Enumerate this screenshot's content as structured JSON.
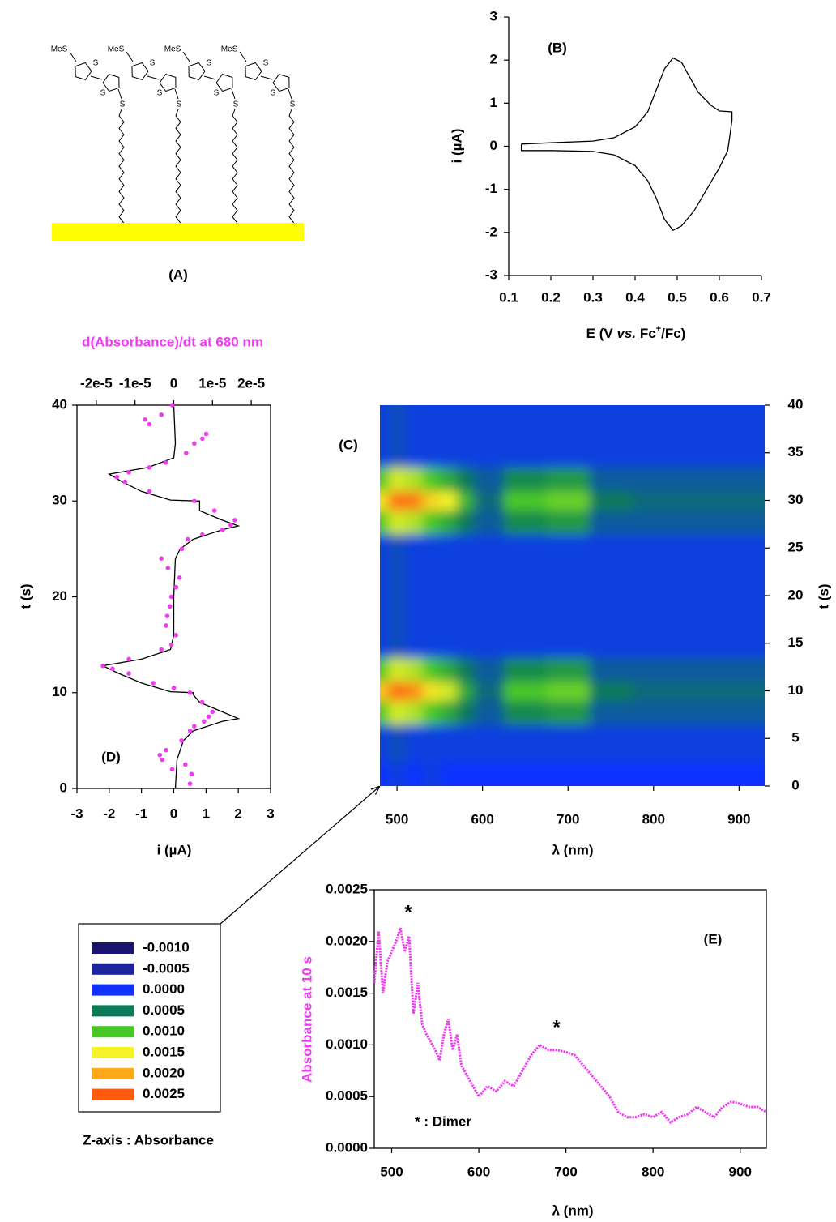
{
  "diagram": {
    "label": "(A)",
    "methylthio_label": "MeS",
    "sulfur_label": "S"
  },
  "chart_data": [
    {
      "type": "line",
      "panel_label": "(B)",
      "xlabel_parts": [
        "E (V ",
        "vs.",
        " Fc",
        "+",
        "/Fc)"
      ],
      "ylabel": "i (µA)",
      "xlim": [
        0.1,
        0.7
      ],
      "xticks": [
        0.1,
        0.2,
        0.3,
        0.4,
        0.5,
        0.6,
        0.7
      ],
      "ylim": [
        -3,
        3
      ],
      "yticks": [
        -3,
        -2,
        -1,
        0,
        1,
        2,
        3
      ],
      "color": "#000000",
      "x": [
        0.13,
        0.2,
        0.3,
        0.35,
        0.4,
        0.43,
        0.45,
        0.47,
        0.49,
        0.51,
        0.53,
        0.55,
        0.58,
        0.6,
        0.63,
        0.63,
        0.62,
        0.6,
        0.57,
        0.54,
        0.51,
        0.49,
        0.47,
        0.45,
        0.43,
        0.4,
        0.35,
        0.3,
        0.2,
        0.13,
        0.13
      ],
      "values": [
        0.05,
        0.08,
        0.12,
        0.2,
        0.45,
        0.8,
        1.3,
        1.8,
        2.05,
        1.95,
        1.6,
        1.25,
        0.95,
        0.82,
        0.8,
        0.6,
        -0.1,
        -0.5,
        -1.0,
        -1.5,
        -1.85,
        -1.95,
        -1.7,
        -1.2,
        -0.8,
        -0.45,
        -0.2,
        -0.12,
        -0.1,
        -0.1,
        0.05
      ]
    },
    {
      "type": "line",
      "orientation": "vertical",
      "panel_label": "(D)",
      "xlabel": "i (µA)",
      "x2label": "d(Absorbance)/dt at 680 nm",
      "ylabel": "t (s)",
      "xlim": [
        -3,
        3
      ],
      "xticks": [
        -3,
        -2,
        -1,
        0,
        1,
        2,
        3
      ],
      "x2lim": [
        -2.5e-05,
        2.5e-05
      ],
      "x2ticks": [
        {
          "value": -2e-05,
          "label": "-2e-5"
        },
        {
          "value": -1e-05,
          "label": "-1e-5"
        },
        0,
        {
          "value": 1e-05,
          "label": "1e-5"
        },
        {
          "value": 2e-05,
          "label": "2e-5"
        }
      ],
      "ylim": [
        0,
        40
      ],
      "yticks": [
        0,
        10,
        20,
        30,
        40
      ],
      "series": [
        {
          "color": "#000000",
          "marker": "line",
          "y": [
            0,
            3,
            5,
            6,
            7,
            7.3,
            8,
            9,
            9.8,
            10,
            10.1,
            11,
            12,
            12.8,
            13.5,
            14.5,
            16,
            20,
            24,
            25,
            26,
            27,
            27.4,
            28,
            29,
            30,
            30.1,
            31,
            32,
            32.8,
            33.5,
            34.5,
            36,
            40
          ],
          "values": [
            0.05,
            0.1,
            0.3,
            0.6,
            1.5,
            2.0,
            1.5,
            0.8,
            0.6,
            0.6,
            -0.1,
            -1.0,
            -1.7,
            -2.2,
            -1.0,
            -0.1,
            0,
            0,
            0.05,
            0.2,
            0.6,
            1.5,
            2.0,
            1.5,
            0.8,
            0.8,
            -0.1,
            -1.0,
            -1.6,
            -2.0,
            -0.8,
            0,
            0.05,
            0
          ]
        },
        {
          "color": "#f03cf0",
          "marker": "dot",
          "axis": "x2",
          "y": [
            0.5,
            1.5,
            2,
            2.5,
            3,
            3.5,
            4,
            5,
            6,
            6.5,
            7,
            7.5,
            8,
            9,
            10,
            10.5,
            11,
            12,
            12.5,
            12.8,
            13.5,
            14.5,
            15,
            16,
            17,
            18,
            19,
            20,
            21,
            22,
            23,
            24,
            25,
            26,
            26.5,
            27,
            27.5,
            28,
            29,
            30,
            31,
            32,
            32.5,
            33,
            33.5,
            34,
            35,
            36,
            36.5,
            37,
            38,
            38.5,
            39,
            40
          ],
          "values": [
            4.2e-06,
            4.6e-06,
            -4e-07,
            3e-06,
            -3e-06,
            -3.6e-06,
            -2e-06,
            2e-06,
            4.2e-06,
            5.3e-06,
            7.8e-06,
            9e-06,
            1e-05,
            7.3e-06,
            4.2e-06,
            0,
            -5.3e-06,
            -1.16e-05,
            -1.58e-05,
            -1.83e-05,
            -1.16e-05,
            -3.2e-06,
            -6e-07,
            6e-07,
            -2e-06,
            -1.7e-06,
            -1e-06,
            -6e-07,
            6e-07,
            1.5e-06,
            -1.5e-06,
            -3.2e-06,
            2.1e-06,
            3.6e-06,
            7.4e-06,
            1.26e-05,
            1.47e-05,
            1.58e-05,
            1.05e-05,
            5.3e-06,
            -6.3e-06,
            -1.26e-05,
            -1.47e-05,
            -1.16e-05,
            -6.3e-06,
            -2.1e-06,
            3.2e-06,
            5.3e-06,
            7.4e-06,
            8.4e-06,
            -6.3e-06,
            -7.4e-06,
            -3.2e-06,
            -4e-07
          ]
        }
      ]
    },
    {
      "type": "heatmap",
      "panel_label": "(C)",
      "xlabel": "λ (nm)",
      "ylabel": "t (s)",
      "xlim": [
        480,
        930
      ],
      "xticks": [
        500,
        600,
        700,
        800,
        900
      ],
      "ylim": [
        0,
        40
      ],
      "yticks": [
        0,
        5,
        10,
        15,
        20,
        25,
        30,
        35,
        40
      ],
      "x": [
        480,
        500,
        520,
        540,
        560,
        580,
        600,
        650,
        700,
        750,
        800,
        850,
        900,
        930
      ],
      "y": [
        0,
        5,
        8,
        10,
        12,
        15,
        20,
        25,
        28,
        30,
        32,
        35,
        40
      ],
      "z": [
        [
          0,
          0.0001,
          0,
          0.0001,
          0,
          0,
          0,
          0,
          0,
          0,
          0,
          0,
          0,
          0
        ],
        [
          0.0001,
          0.0002,
          0.0001,
          0.0001,
          0.0001,
          0.0001,
          0.0001,
          0.0001,
          0.0001,
          0.0001,
          0.0001,
          0.0001,
          0.0001,
          0.0001
        ],
        [
          0.001,
          0.0014,
          0.0013,
          0.001,
          0.0008,
          0.0005,
          0.0003,
          0.0006,
          0.0007,
          0.0003,
          0.0003,
          0.0003,
          0.0003,
          0.0003
        ],
        [
          0.0018,
          0.0024,
          0.0022,
          0.0016,
          0.0014,
          0.0008,
          0.0004,
          0.001,
          0.0011,
          0.0005,
          0.0004,
          0.0004,
          0.0004,
          0.0004
        ],
        [
          0.001,
          0.0014,
          0.0013,
          0.001,
          0.0008,
          0.0005,
          0.0003,
          0.0006,
          0.0007,
          0.0003,
          0.0003,
          0.0003,
          0.0003,
          0.0003
        ],
        [
          0.0001,
          0.0002,
          0.0001,
          0.0001,
          0.0001,
          0.0001,
          0.0001,
          0.0001,
          0.0001,
          0.0001,
          0.0001,
          0.0001,
          0.0001,
          0.0001
        ],
        [
          0.0001,
          0.0002,
          0.0001,
          0.0001,
          0.0001,
          0.0001,
          0.0001,
          0.0001,
          0.0001,
          0.0001,
          0.0001,
          0.0001,
          0.0001,
          0.0001
        ],
        [
          0.0001,
          0.0002,
          0.0001,
          0.0001,
          0.0001,
          0.0001,
          0.0001,
          0.0001,
          0.0001,
          0.0001,
          0.0001,
          0.0001,
          0.0001,
          0.0001
        ],
        [
          0.001,
          0.0014,
          0.0013,
          0.001,
          0.0008,
          0.0005,
          0.0003,
          0.0006,
          0.0007,
          0.0003,
          0.0003,
          0.0003,
          0.0003,
          0.0003
        ],
        [
          0.0016,
          0.0024,
          0.0023,
          0.0017,
          0.0015,
          0.0009,
          0.0004,
          0.001,
          0.0011,
          0.0005,
          0.0004,
          0.0004,
          0.0004,
          0.0004
        ],
        [
          0.001,
          0.0014,
          0.0013,
          0.001,
          0.0008,
          0.0005,
          0.0003,
          0.0006,
          0.0007,
          0.0003,
          0.0003,
          0.0003,
          0.0003,
          0.0003
        ],
        [
          0.0001,
          0.0002,
          0.0001,
          0.0001,
          0.0001,
          0.0001,
          0.0001,
          0.0001,
          0.0001,
          0.0001,
          0.0001,
          0.0001,
          0.0001,
          0.0001
        ],
        [
          0.0001,
          0.0002,
          0.0001,
          0.0001,
          0.0001,
          0.0001,
          0.0001,
          0.0001,
          0.0001,
          0.0001,
          0.0001,
          0.0001,
          0.0001,
          0.0001
        ]
      ],
      "colorbar": {
        "title": "Z-axis : Absorbance",
        "levels": [
          {
            "value": -0.001,
            "label": "-0.0010"
          },
          {
            "value": -0.0005,
            "label": "-0.0005"
          },
          {
            "value": 0,
            "label": "0.0000"
          },
          {
            "value": 0.0005,
            "label": "0.0005"
          },
          {
            "value": 0.001,
            "label": "0.0010"
          },
          {
            "value": 0.0015,
            "label": "0.0015"
          },
          {
            "value": 0.002,
            "label": "0.0020"
          },
          {
            "value": 0.0025,
            "label": "0.0025"
          }
        ],
        "colors": [
          "#1a1470",
          "#1c24a0",
          "#1030ff",
          "#0a7a58",
          "#48c828",
          "#f4f428",
          "#ffa818",
          "#ff5a10"
        ]
      }
    },
    {
      "type": "scatter",
      "panel_label": "(E)",
      "xlabel": "λ (nm)",
      "ylabel": "Absorbance at 10 s",
      "annotations": [
        "*",
        "*",
        "* : Dimer"
      ],
      "xlim": [
        480,
        930
      ],
      "xticks": [
        500,
        600,
        700,
        800,
        900
      ],
      "ylim": [
        0,
        0.0025
      ],
      "yticks": [
        {
          "value": 0,
          "label": "0.0000"
        },
        {
          "value": 0.0005,
          "label": "0.0005"
        },
        {
          "value": 0.001,
          "label": "0.0010"
        },
        {
          "value": 0.0015,
          "label": "0.0015"
        },
        {
          "value": 0.002,
          "label": "0.0020"
        },
        {
          "value": 0.0025,
          "label": "0.0025"
        }
      ],
      "color": "#f03cf0",
      "x": [
        480,
        485,
        490,
        495,
        500,
        505,
        510,
        515,
        520,
        525,
        530,
        535,
        540,
        550,
        555,
        560,
        565,
        570,
        575,
        580,
        590,
        600,
        610,
        620,
        630,
        640,
        650,
        660,
        670,
        680,
        690,
        700,
        710,
        720,
        730,
        740,
        750,
        760,
        770,
        780,
        790,
        800,
        810,
        820,
        830,
        840,
        850,
        860,
        870,
        880,
        890,
        900,
        910,
        920,
        930
      ],
      "values": [
        0.0016,
        0.0021,
        0.0015,
        0.0018,
        0.0019,
        0.002,
        0.00213,
        0.0019,
        0.00205,
        0.0013,
        0.0016,
        0.0012,
        0.0011,
        0.00095,
        0.00085,
        0.0011,
        0.00125,
        0.00095,
        0.0011,
        0.0008,
        0.00065,
        0.0005,
        0.0006,
        0.00055,
        0.00065,
        0.0006,
        0.00075,
        0.0009,
        0.001,
        0.00095,
        0.00095,
        0.00093,
        0.0009,
        0.0008,
        0.0007,
        0.0006,
        0.0005,
        0.00035,
        0.0003,
        0.0003,
        0.00033,
        0.0003,
        0.00035,
        0.00025,
        0.0003,
        0.00033,
        0.0004,
        0.00035,
        0.0003,
        0.0004,
        0.00045,
        0.00043,
        0.0004,
        0.0004,
        0.00035
      ]
    }
  ]
}
